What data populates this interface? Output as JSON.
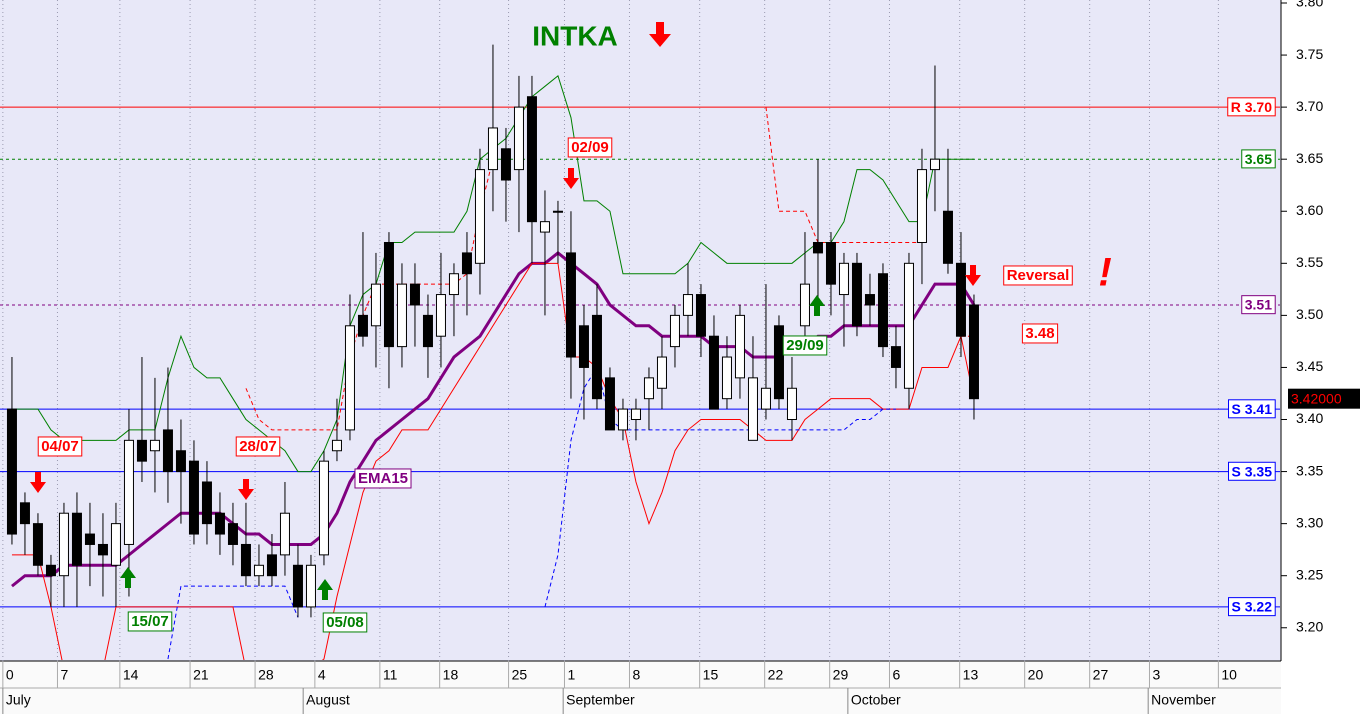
{
  "chart_data": {
    "type": "candlestick",
    "title": "INTKA",
    "xlim": [
      -0.92,
      97.54
    ],
    "ylim": [
      3.17,
      3.8
    ],
    "grid": true,
    "xticks": [
      {
        "value": -0.7,
        "label": "0"
      },
      {
        "value": 3.5,
        "label": "7"
      },
      {
        "value": 8.3,
        "label": "14"
      },
      {
        "value": 13.7,
        "label": "21"
      },
      {
        "value": 18.7,
        "label": "28"
      },
      {
        "value": 23.3,
        "label": "4"
      },
      {
        "value": 28.3,
        "label": "11"
      },
      {
        "value": 32.9,
        "label": "18"
      },
      {
        "value": 38.2,
        "label": "25"
      },
      {
        "value": 42.5,
        "label": "1"
      },
      {
        "value": 47.5,
        "label": "8"
      },
      {
        "value": 52.9,
        "label": "15"
      },
      {
        "value": 57.9,
        "label": "22"
      },
      {
        "value": 62.9,
        "label": "29"
      },
      {
        "value": 67.5,
        "label": "6"
      },
      {
        "value": 72.9,
        "label": "13"
      },
      {
        "value": 77.9,
        "label": "20"
      },
      {
        "value": 82.9,
        "label": "27"
      },
      {
        "value": 87.5,
        "label": "3"
      },
      {
        "value": 92.8,
        "label": "10"
      }
    ],
    "months": [
      {
        "value": -0.7,
        "label": "July"
      },
      {
        "value": 22.4,
        "label": "August"
      },
      {
        "value": 42.4,
        "label": "September"
      },
      {
        "value": 64.3,
        "label": "October"
      },
      {
        "value": 87.4,
        "label": "November"
      }
    ],
    "yticks": [
      {
        "value": 3.2,
        "label": "3.20"
      },
      {
        "value": 3.25,
        "label": "3.25"
      },
      {
        "value": 3.3,
        "label": "3.30"
      },
      {
        "value": 3.35,
        "label": "3.35"
      },
      {
        "value": 3.4,
        "label": "3.40"
      },
      {
        "value": 3.45,
        "label": "3.45"
      },
      {
        "value": 3.5,
        "label": "3.50"
      },
      {
        "value": 3.55,
        "label": "3.55"
      },
      {
        "value": 3.6,
        "label": "3.60"
      },
      {
        "value": 3.65,
        "label": "3.65"
      },
      {
        "value": 3.7,
        "label": "3.70"
      },
      {
        "value": 3.75,
        "label": "3.75"
      },
      {
        "value": 3.8,
        "label": "3.80"
      }
    ],
    "x": [
      0,
      1,
      2,
      3,
      4,
      5,
      6,
      7,
      8,
      9,
      10,
      11,
      12,
      13,
      14,
      15,
      16,
      17,
      18,
      19,
      20,
      21,
      22,
      23,
      24,
      25,
      26,
      27,
      28,
      29,
      30,
      31,
      32,
      33,
      34,
      35,
      36,
      37,
      38,
      39,
      40,
      41,
      42,
      43,
      44,
      45,
      46,
      47,
      48,
      49,
      50,
      51,
      52,
      53,
      54,
      55,
      56,
      57,
      58,
      59,
      60,
      61,
      62,
      63,
      64,
      65,
      66,
      67,
      68,
      69,
      70,
      71,
      72,
      73,
      74
    ],
    "open": [
      3.41,
      3.32,
      3.3,
      3.26,
      3.25,
      3.31,
      3.29,
      3.28,
      3.26,
      3.28,
      3.38,
      3.37,
      3.39,
      3.37,
      3.36,
      3.34,
      3.31,
      3.3,
      3.28,
      3.25,
      3.27,
      3.27,
      3.26,
      3.22,
      3.27,
      3.37,
      3.39,
      3.5,
      3.49,
      3.57,
      3.47,
      3.53,
      3.5,
      3.48,
      3.52,
      3.56,
      3.55,
      3.64,
      3.66,
      3.64,
      3.71,
      3.58,
      3.6,
      3.56,
      3.49,
      3.5,
      3.44,
      3.39,
      3.4,
      3.42,
      3.43,
      3.47,
      3.5,
      3.52,
      3.48,
      3.42,
      3.44,
      3.38,
      3.41,
      3.49,
      3.4,
      3.49,
      3.57,
      3.57,
      3.52,
      3.55,
      3.52,
      3.54,
      3.47,
      3.43,
      3.57,
      3.64,
      3.6,
      3.55,
      3.51
    ],
    "high": [
      3.46,
      3.33,
      3.31,
      3.27,
      3.32,
      3.33,
      3.32,
      3.31,
      3.32,
      3.41,
      3.46,
      3.44,
      3.45,
      3.4,
      3.38,
      3.36,
      3.33,
      3.32,
      3.32,
      3.28,
      3.29,
      3.34,
      3.28,
      3.27,
      3.37,
      3.42,
      3.52,
      3.58,
      3.56,
      3.58,
      3.55,
      3.55,
      3.52,
      3.56,
      3.55,
      3.58,
      3.66,
      3.76,
      3.68,
      3.73,
      3.73,
      3.62,
      3.61,
      3.6,
      3.51,
      3.53,
      3.45,
      3.42,
      3.42,
      3.45,
      3.48,
      3.51,
      3.55,
      3.53,
      3.5,
      3.48,
      3.51,
      3.48,
      3.53,
      3.5,
      3.46,
      3.58,
      3.65,
      3.58,
      3.56,
      3.56,
      3.54,
      3.55,
      3.49,
      3.56,
      3.66,
      3.74,
      3.66,
      3.58,
      3.52
    ],
    "low": [
      3.28,
      3.27,
      3.25,
      3.22,
      3.22,
      3.22,
      3.24,
      3.23,
      3.22,
      3.23,
      3.34,
      3.33,
      3.32,
      3.3,
      3.28,
      3.28,
      3.27,
      3.26,
      3.24,
      3.24,
      3.24,
      3.25,
      3.21,
      3.21,
      3.26,
      3.36,
      3.38,
      3.47,
      3.45,
      3.43,
      3.45,
      3.47,
      3.44,
      3.45,
      3.48,
      3.5,
      3.52,
      3.6,
      3.59,
      3.58,
      3.55,
      3.5,
      3.55,
      3.42,
      3.4,
      3.41,
      3.39,
      3.38,
      3.38,
      3.39,
      3.41,
      3.45,
      3.48,
      3.46,
      3.41,
      3.41,
      3.42,
      3.38,
      3.4,
      3.41,
      3.38,
      3.48,
      3.5,
      3.5,
      3.47,
      3.48,
      3.49,
      3.46,
      3.43,
      3.41,
      3.53,
      3.6,
      3.54,
      3.46,
      3.4
    ],
    "close": [
      3.29,
      3.3,
      3.26,
      3.25,
      3.31,
      3.26,
      3.28,
      3.27,
      3.3,
      3.38,
      3.36,
      3.38,
      3.35,
      3.35,
      3.29,
      3.3,
      3.29,
      3.28,
      3.25,
      3.26,
      3.25,
      3.31,
      3.22,
      3.26,
      3.36,
      3.38,
      3.49,
      3.48,
      3.53,
      3.47,
      3.53,
      3.51,
      3.47,
      3.52,
      3.54,
      3.54,
      3.64,
      3.68,
      3.63,
      3.7,
      3.59,
      3.59,
      3.6,
      3.46,
      3.45,
      3.42,
      3.39,
      3.41,
      3.41,
      3.44,
      3.46,
      3.5,
      3.52,
      3.48,
      3.41,
      3.46,
      3.5,
      3.44,
      3.43,
      3.42,
      3.43,
      3.53,
      3.56,
      3.53,
      3.55,
      3.49,
      3.51,
      3.47,
      3.45,
      3.55,
      3.64,
      3.65,
      3.55,
      3.48,
      3.42
    ],
    "series": [
      {
        "name": "EMA15",
        "color": "#800080",
        "width": 3,
        "dash": "solid",
        "values": [
          3.24,
          3.25,
          3.25,
          3.25,
          3.26,
          3.26,
          3.26,
          3.26,
          3.26,
          3.27,
          3.28,
          3.29,
          3.3,
          3.31,
          3.31,
          3.31,
          3.31,
          3.3,
          3.29,
          3.29,
          3.28,
          3.28,
          3.28,
          3.28,
          3.29,
          3.31,
          3.34,
          3.36,
          3.38,
          3.39,
          3.4,
          3.41,
          3.42,
          3.44,
          3.46,
          3.47,
          3.48,
          3.5,
          3.52,
          3.54,
          3.55,
          3.55,
          3.56,
          3.55,
          3.54,
          3.53,
          3.51,
          3.5,
          3.49,
          3.49,
          3.48,
          3.48,
          3.48,
          3.48,
          3.47,
          3.47,
          3.47,
          3.46,
          3.46,
          3.46,
          3.47,
          3.47,
          3.48,
          3.48,
          3.49,
          3.49,
          3.49,
          3.49,
          3.49,
          3.49,
          3.51,
          3.53,
          3.53,
          3.53,
          3.51
        ]
      },
      {
        "color": "#008000",
        "width": 1,
        "dash": "solid",
        "values": [
          3.41,
          3.41,
          3.41,
          3.39,
          3.38,
          3.38,
          3.38,
          3.38,
          3.38,
          3.39,
          3.39,
          3.39,
          3.44,
          3.48,
          3.45,
          3.44,
          3.44,
          3.42,
          3.4,
          3.39,
          3.38,
          3.37,
          3.35,
          3.35,
          3.37,
          3.4,
          3.49,
          3.52,
          3.53,
          3.57,
          3.57,
          3.58,
          3.58,
          3.58,
          3.58,
          3.6,
          3.65,
          3.66,
          3.67,
          3.69,
          3.71,
          3.72,
          3.73,
          3.69,
          3.61,
          3.61,
          3.6,
          3.54,
          3.54,
          3.54,
          3.54,
          3.54,
          3.55,
          3.57,
          3.56,
          3.55,
          3.55,
          3.55,
          3.55,
          3.55,
          3.55,
          3.56,
          3.57,
          3.57,
          3.59,
          3.64,
          3.64,
          3.63,
          3.61,
          3.59,
          3.59,
          3.65,
          3.65,
          3.65,
          3.65
        ]
      },
      {
        "color": "#ff0000",
        "width": 1,
        "dash": "solid",
        "values": [
          3.27,
          3.27,
          3.27,
          3.22,
          3.16,
          3.16,
          3.16,
          3.16,
          3.22,
          3.22,
          3.22,
          3.22,
          3.22,
          3.22,
          3.22,
          3.22,
          3.22,
          3.22,
          3.16,
          3.16,
          3.16,
          3.16,
          3.16,
          3.16,
          3.17,
          3.23,
          3.28,
          3.33,
          3.36,
          3.37,
          3.39,
          3.39,
          3.39,
          3.41,
          3.43,
          3.45,
          3.47,
          3.49,
          3.51,
          3.53,
          3.55,
          3.55,
          3.55,
          3.46,
          3.46,
          3.45,
          3.42,
          3.4,
          3.34,
          3.3,
          3.33,
          3.37,
          3.39,
          3.4,
          3.4,
          3.4,
          3.4,
          3.39,
          3.38,
          3.38,
          3.38,
          3.4,
          3.41,
          3.42,
          3.42,
          3.42,
          3.42,
          3.41,
          3.41,
          3.41,
          3.45,
          3.45,
          3.45,
          3.48,
          3.42
        ]
      },
      {
        "color": "#ff0000",
        "width": 1,
        "dash": "dashed",
        "values": [
          null,
          null,
          null,
          null,
          null,
          null,
          null,
          null,
          null,
          null,
          null,
          null,
          null,
          null,
          null,
          null,
          null,
          null,
          3.43,
          3.4,
          3.39,
          3.39,
          3.39,
          3.39,
          3.39,
          3.39,
          3.46,
          3.5,
          3.53,
          3.53,
          3.53,
          3.53,
          3.53,
          3.53,
          3.53,
          3.54,
          3.6,
          3.65,
          null,
          null,
          null,
          null,
          null,
          null,
          null,
          null,
          null,
          null,
          null,
          null,
          null,
          null,
          null,
          null,
          null,
          null,
          null,
          null,
          3.7,
          3.6,
          3.6,
          3.6,
          3.57,
          3.57,
          3.57,
          3.57,
          3.57,
          3.57,
          3.57,
          3.57,
          3.57,
          null,
          null,
          3.48,
          3.48
        ]
      },
      {
        "color": "#0000ff",
        "width": 1,
        "dash": "dashed",
        "values": [
          null,
          null,
          null,
          null,
          null,
          null,
          null,
          null,
          null,
          null,
          null,
          null,
          3.17,
          3.24,
          3.24,
          3.24,
          3.24,
          3.24,
          3.24,
          3.24,
          3.24,
          3.24,
          3.21,
          null,
          null,
          null,
          null,
          null,
          null,
          null,
          null,
          null,
          null,
          null,
          null,
          null,
          null,
          null,
          null,
          null,
          null,
          3.22,
          3.27,
          3.38,
          3.43,
          3.45,
          3.4,
          3.39,
          3.39,
          3.39,
          3.39,
          3.39,
          3.39,
          3.39,
          3.39,
          3.39,
          3.39,
          3.39,
          3.39,
          3.39,
          3.39,
          3.39,
          3.39,
          3.39,
          3.39,
          3.4,
          3.4,
          3.41,
          3.41,
          null,
          null,
          null,
          null,
          null,
          null
        ]
      }
    ],
    "levels": [
      {
        "value": 3.7,
        "label": "R 3.70",
        "color": "#ff0000",
        "dash": "solid"
      },
      {
        "value": 3.65,
        "label": "3.65",
        "color": "#008000",
        "dash": "dotted"
      },
      {
        "value": 3.51,
        "label": "3.51",
        "color": "#800080",
        "dash": "dotted"
      },
      {
        "value": 3.41,
        "label": "S 3.41",
        "color": "#0000ff",
        "dash": "solid"
      },
      {
        "value": 3.35,
        "label": "S 3.35",
        "color": "#0000ff",
        "dash": "solid"
      },
      {
        "value": 3.22,
        "label": "S 3.22",
        "color": "#0000ff",
        "dash": "solid"
      }
    ],
    "last_price": {
      "value": 3.42,
      "label": "3.42000"
    },
    "annotations": [
      "04/07",
      "15/07",
      "28/07",
      "05/08",
      "EMA15",
      "02/09",
      "29/09",
      "Reversal",
      "3.48",
      "!"
    ]
  }
}
